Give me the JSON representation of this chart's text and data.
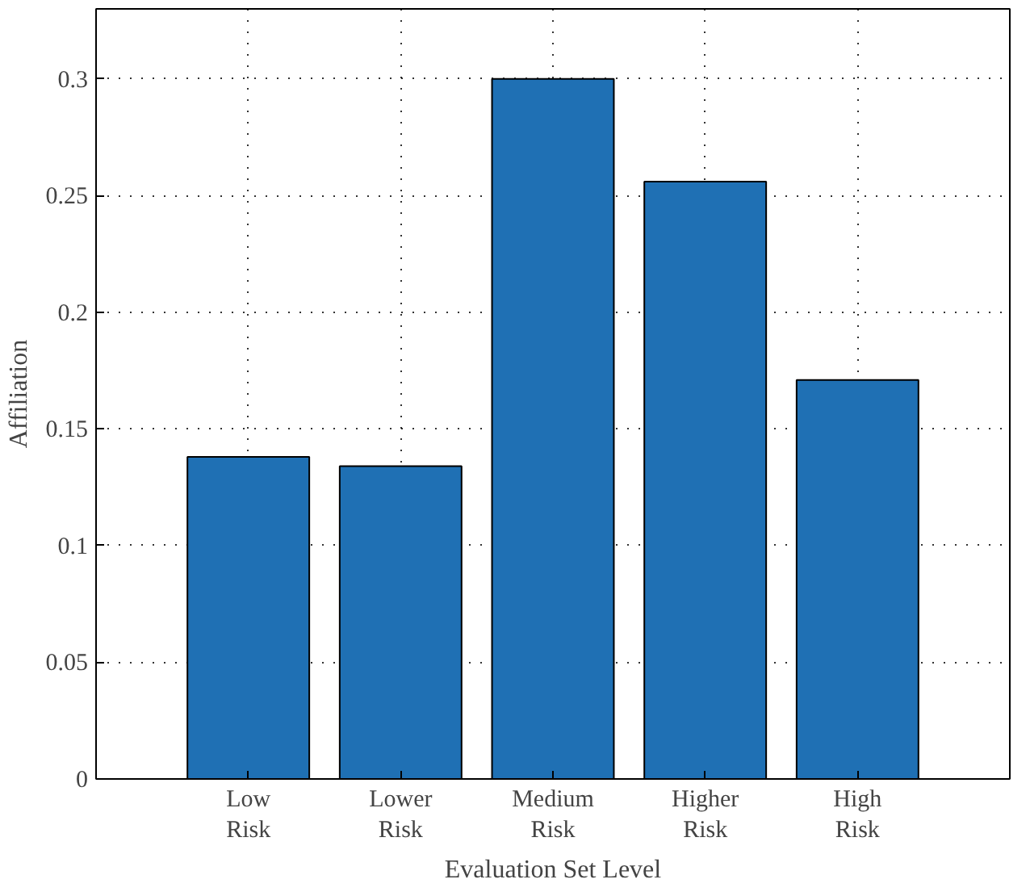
{
  "chart_data": {
    "type": "bar",
    "xlabel": "Evaluation Set Level",
    "ylabel": "Affiliation",
    "categories": [
      "Low Risk",
      "Lower Risk",
      "Medium Risk",
      "Higher Risk",
      "High Risk"
    ],
    "values": [
      0.138,
      0.134,
      0.3,
      0.256,
      0.171
    ],
    "color": "#1f70b4",
    "ylim": [
      0,
      0.33
    ],
    "yticks": [
      0,
      0.05,
      0.1,
      0.15,
      0.2,
      0.25,
      0.3
    ],
    "grid": true
  }
}
